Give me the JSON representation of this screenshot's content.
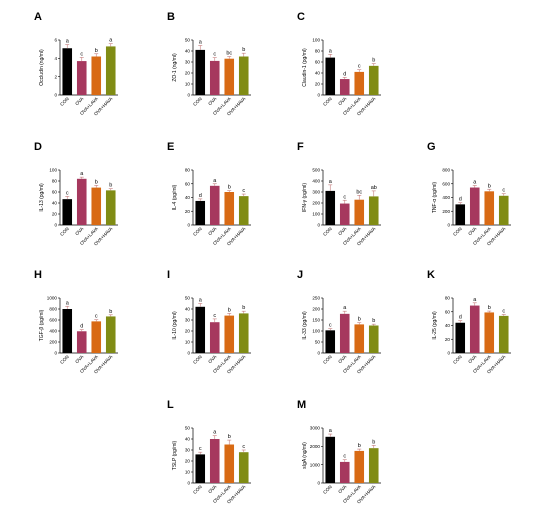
{
  "colors": {
    "CON": "#000000",
    "OVA": "#a6385e",
    "OVA+LAVA": "#d86a14",
    "OVA+HAVA": "#808c14",
    "error_bar": "#c47a7a",
    "axis": "#000000"
  },
  "chart_data": [
    {
      "type": "bar",
      "panel": "A",
      "ylabel": "Occludin (ng/ml)",
      "categories": [
        "CON",
        "OVA",
        "OVA+LAVA",
        "OVA+HAVA"
      ],
      "values": [
        5.1,
        3.7,
        4.2,
        5.3
      ],
      "errors": [
        0.4,
        0.4,
        0.3,
        0.3
      ],
      "significance": [
        "a",
        "c",
        "b",
        "a"
      ],
      "ylim": [
        0,
        6
      ],
      "yticks": [
        0,
        2,
        4,
        6
      ]
    },
    {
      "type": "bar",
      "panel": "B",
      "ylabel": "ZO-1 (ng/ml)",
      "categories": [
        "CON",
        "OVA",
        "OVA+LAVA",
        "OVA+HAVA"
      ],
      "values": [
        41,
        31,
        33,
        35
      ],
      "errors": [
        4,
        3,
        2,
        3
      ],
      "significance": [
        "a",
        "c",
        "bc",
        "b"
      ],
      "ylim": [
        0,
        50
      ],
      "yticks": [
        0,
        10,
        20,
        30,
        40,
        50
      ]
    },
    {
      "type": "bar",
      "panel": "C",
      "ylabel": "Claudin-1 (pg/ml)",
      "categories": [
        "CON",
        "OVA",
        "OVA+LAVA",
        "OVA+HAVA"
      ],
      "values": [
        68,
        29,
        42,
        53
      ],
      "errors": [
        6,
        3,
        4,
        4
      ],
      "significance": [
        "a",
        "d",
        "c",
        "b"
      ],
      "ylim": [
        0,
        100
      ],
      "yticks": [
        0,
        20,
        40,
        60,
        80,
        100
      ]
    },
    {
      "type": "bar",
      "panel": "D",
      "ylabel": "IL-13 (pg/ml)",
      "categories": [
        "CON",
        "OVA",
        "OVA+LAVA",
        "OVA+HAVA"
      ],
      "values": [
        47,
        84,
        68,
        63
      ],
      "errors": [
        5,
        3,
        4,
        3
      ],
      "significance": [
        "c",
        "a",
        "b",
        "b"
      ],
      "ylim": [
        0,
        100
      ],
      "yticks": [
        0,
        20,
        40,
        60,
        80,
        100
      ]
    },
    {
      "type": "bar",
      "panel": "E",
      "ylabel": "IL-4 (pg/ml)",
      "categories": [
        "CON",
        "OVA",
        "OVA+LAVA",
        "OVA+HAVA"
      ],
      "values": [
        35,
        57,
        48,
        42
      ],
      "errors": [
        3,
        3,
        2,
        3
      ],
      "significance": [
        "d",
        "a",
        "b",
        "c"
      ],
      "ylim": [
        0,
        80
      ],
      "yticks": [
        0,
        20,
        40,
        60,
        80
      ]
    },
    {
      "type": "bar",
      "panel": "F",
      "ylabel": "IFN-γ (pg/ml)",
      "categories": [
        "CON",
        "OVA",
        "OVA+LAVA",
        "OVA+HAVA"
      ],
      "values": [
        310,
        195,
        230,
        260
      ],
      "errors": [
        55,
        30,
        40,
        50
      ],
      "significance": [
        "a",
        "c",
        "bc",
        "ab"
      ],
      "ylim": [
        0,
        500
      ],
      "yticks": [
        0,
        100,
        200,
        300,
        400,
        500
      ]
    },
    {
      "type": "bar",
      "panel": "G",
      "ylabel": "TNF-α (pg/ml)",
      "categories": [
        "CON",
        "OVA",
        "OVA+LAVA",
        "OVA+HAVA"
      ],
      "values": [
        300,
        545,
        490,
        425
      ],
      "errors": [
        25,
        30,
        30,
        30
      ],
      "significance": [
        "d",
        "a",
        "b",
        "c"
      ],
      "ylim": [
        0,
        800
      ],
      "yticks": [
        0,
        200,
        400,
        600,
        800
      ]
    },
    {
      "type": "bar",
      "panel": "H",
      "ylabel": "TGF-β (pg/ml)",
      "categories": [
        "CON",
        "OVA",
        "OVA+LAVA",
        "OVA+HAVA"
      ],
      "values": [
        800,
        395,
        575,
        665
      ],
      "errors": [
        50,
        30,
        30,
        30
      ],
      "significance": [
        "a",
        "d",
        "c",
        "b"
      ],
      "ylim": [
        0,
        1000
      ],
      "yticks": [
        0,
        200,
        400,
        600,
        800,
        1000
      ]
    },
    {
      "type": "bar",
      "panel": "I",
      "ylabel": "IL-10 (pg/ml)",
      "categories": [
        "CON",
        "OVA",
        "OVA+LAVA",
        "OVA+HAVA"
      ],
      "values": [
        42,
        28,
        34,
        36
      ],
      "errors": [
        3,
        3,
        2,
        2
      ],
      "significance": [
        "a",
        "c",
        "b",
        "b"
      ],
      "ylim": [
        0,
        50
      ],
      "yticks": [
        0,
        10,
        20,
        30,
        40,
        50
      ]
    },
    {
      "type": "bar",
      "panel": "J",
      "ylabel": "IL-33 (pg/ml)",
      "categories": [
        "CON",
        "OVA",
        "OVA+LAVA",
        "OVA+HAVA"
      ],
      "values": [
        103,
        178,
        130,
        125
      ],
      "errors": [
        8,
        12,
        8,
        6
      ],
      "significance": [
        "c",
        "a",
        "b",
        "b"
      ],
      "ylim": [
        0,
        250
      ],
      "yticks": [
        0,
        50,
        100,
        150,
        200,
        250
      ]
    },
    {
      "type": "bar",
      "panel": "K",
      "ylabel": "IL-25 (pg/ml)",
      "categories": [
        "CON",
        "OVA",
        "OVA+LAVA",
        "OVA+HAVA"
      ],
      "values": [
        44,
        69,
        59,
        54
      ],
      "errors": [
        3,
        4,
        2,
        2
      ],
      "significance": [
        "d",
        "a",
        "b",
        "c"
      ],
      "ylim": [
        0,
        80
      ],
      "yticks": [
        0,
        20,
        40,
        60,
        80
      ]
    },
    {
      "type": "bar",
      "panel": "L",
      "ylabel": "TSLP (pg/ml)",
      "categories": [
        "CON",
        "OVA",
        "OVA+LAVA",
        "OVA+HAVA"
      ],
      "values": [
        26,
        40,
        35,
        28
      ],
      "errors": [
        2,
        3,
        4,
        2
      ],
      "significance": [
        "c",
        "a",
        "b",
        "c"
      ],
      "ylim": [
        0,
        50
      ],
      "yticks": [
        0,
        10,
        20,
        30,
        40,
        50
      ]
    },
    {
      "type": "bar",
      "panel": "M",
      "ylabel": "sIgA (ng/ml)",
      "categories": [
        "CON",
        "OVA",
        "OVA+LAVA",
        "OVA+HAVA"
      ],
      "values": [
        2520,
        1150,
        1750,
        1900
      ],
      "errors": [
        150,
        120,
        100,
        150
      ],
      "significance": [
        "a",
        "c",
        "b",
        "b"
      ],
      "ylim": [
        0,
        3000
      ],
      "yticks": [
        0,
        1000,
        2000,
        3000
      ]
    }
  ]
}
